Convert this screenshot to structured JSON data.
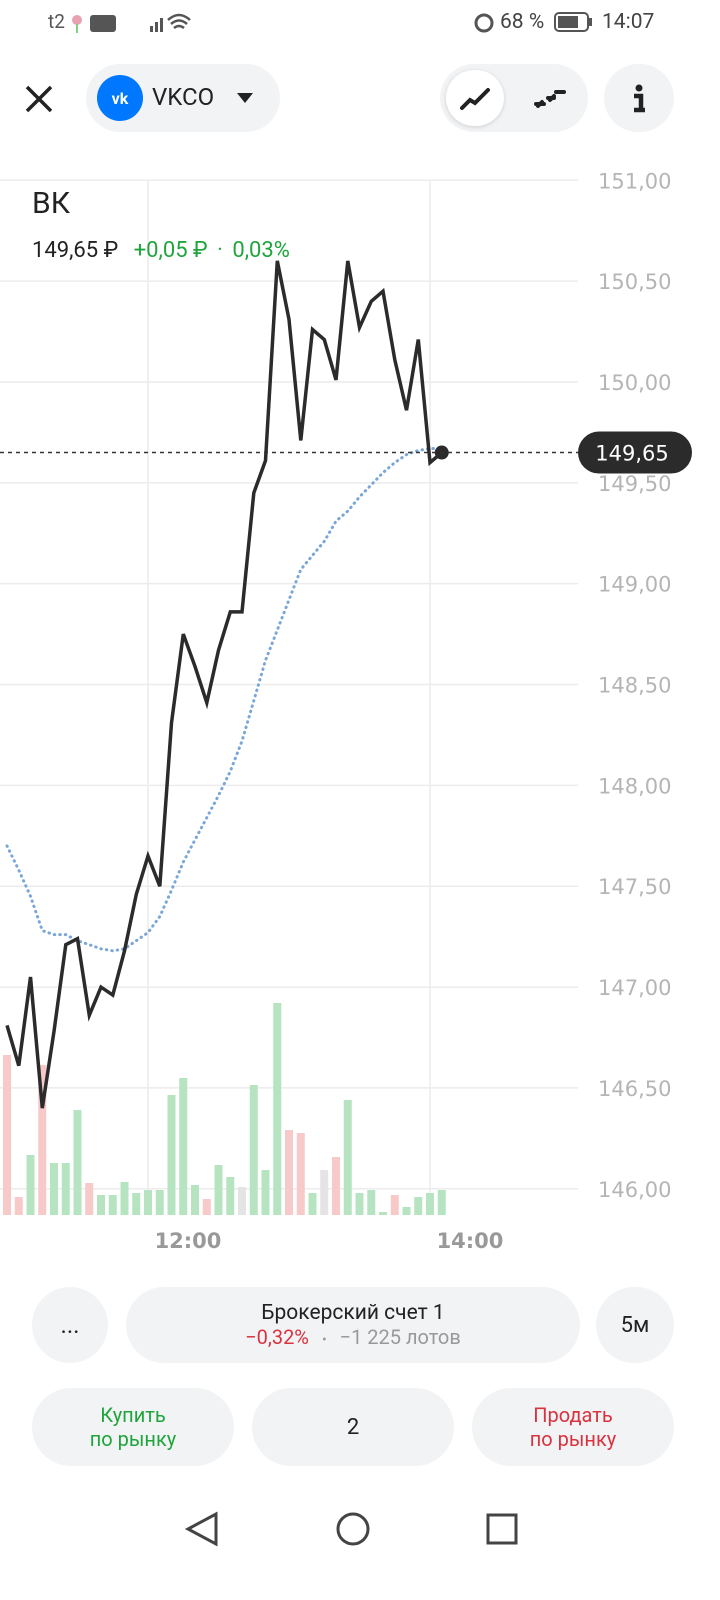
{
  "status_bar": {
    "carrier": "t2",
    "battery": "68 %",
    "time": "14:07"
  },
  "header": {
    "ticker": "VKCO"
  },
  "chart": {
    "type": "line",
    "title": "ВК",
    "price": "149,65 ₽",
    "change": "+0,05 ₽",
    "separator": "·",
    "change_percent": "0,03%",
    "categories": [
      null,
      null,
      null,
      null,
      null,
      null,
      null,
      null,
      null,
      null,
      null,
      null,
      "12:00",
      null,
      null,
      null,
      null,
      null,
      null,
      null,
      null,
      null,
      null,
      null,
      null,
      null,
      null,
      null,
      null,
      null,
      null,
      null,
      null,
      null,
      null,
      null,
      "14:00",
      null
    ],
    "price_series": {
      "color": "#2b2b2b",
      "values": [
        146.81,
        146.61,
        147.05,
        146.4,
        146.78,
        147.21,
        147.24,
        146.86,
        147.0,
        146.96,
        147.18,
        147.46,
        147.65,
        147.5,
        148.31,
        148.75,
        148.59,
        148.41,
        148.67,
        148.86,
        148.86,
        149.45,
        149.61,
        150.6,
        150.31,
        149.71,
        150.26,
        150.21,
        150.01,
        150.6,
        150.27,
        150.4,
        150.45,
        150.11,
        149.86,
        150.21,
        149.6,
        149.65
      ]
    },
    "moving_average": {
      "color": "#7aa6d8",
      "values": [
        147.7,
        147.58,
        147.45,
        147.28,
        147.26,
        147.26,
        147.23,
        147.21,
        147.19,
        147.18,
        147.19,
        147.23,
        147.27,
        147.35,
        147.48,
        147.62,
        147.73,
        147.84,
        147.95,
        148.07,
        148.22,
        148.42,
        148.62,
        148.77,
        148.92,
        149.07,
        149.14,
        149.21,
        149.31,
        149.36,
        149.43,
        149.49,
        149.55,
        149.6,
        149.64,
        149.66,
        149.67,
        149.67
      ]
    },
    "volume": {
      "values": [
        160,
        18,
        60,
        150,
        52,
        52,
        105,
        32,
        20,
        20,
        33,
        22,
        25,
        25,
        120,
        137,
        30,
        16,
        50,
        38,
        28,
        130,
        45,
        212,
        85,
        82,
        22,
        45,
        58,
        115,
        22,
        25,
        3,
        20,
        8,
        18,
        22,
        25
      ],
      "colors": [
        "#f7c9c9",
        "#f7c9c9",
        "#b6e4c0",
        "#f7c9c9",
        "#b6e4c0",
        "#b6e4c0",
        "#b6e4c0",
        "#f7c9c9",
        "#b6e4c0",
        "#b6e4c0",
        "#b6e4c0",
        "#b6e4c0",
        "#b6e4c0",
        "#b6e4c0",
        "#b6e4c0",
        "#b6e4c0",
        "#b6e4c0",
        "#f7c9c9",
        "#b6e4c0",
        "#b6e4c0",
        "#e4e4e4",
        "#b6e4c0",
        "#b6e4c0",
        "#b6e4c0",
        "#f7c9c9",
        "#f7c9c9",
        "#b6e4c0",
        "#e4e4e4",
        "#f7c9c9",
        "#b6e4c0",
        "#b6e4c0",
        "#b6e4c0",
        "#b6e4c0",
        "#f7c9c9",
        "#b6e4c0",
        "#b6e4c0",
        "#b6e4c0",
        "#b6e4c0"
      ]
    },
    "ylim": [
      145.87,
      151.15
    ],
    "yticks": [
      {
        "value": 146,
        "label": "146,00"
      },
      {
        "value": 146.5,
        "label": "146,50"
      },
      {
        "value": 147,
        "label": "147,00"
      },
      {
        "value": 147.5,
        "label": "147,50"
      },
      {
        "value": 148,
        "label": "148,00"
      },
      {
        "value": 148.5,
        "label": "148,50"
      },
      {
        "value": 149,
        "label": "149,00"
      },
      {
        "value": 149.5,
        "label": "149,50"
      },
      {
        "value": 150,
        "label": "150,00"
      },
      {
        "value": 150.5,
        "label": "150,50"
      },
      {
        "value": 151,
        "label": "151,00"
      }
    ],
    "grid": true,
    "current_price": {
      "value": 149.65,
      "label": "149,65"
    }
  },
  "footer": {
    "more": "...",
    "account": {
      "name": "Брокерский счет 1",
      "pnl": "−0,32%",
      "separator": "•",
      "lots": "−1 225 лотов"
    },
    "interval": "5м",
    "buy": [
      "Купить",
      "по рынку"
    ],
    "quantity": "2",
    "sell": [
      "Продать",
      "по рынку"
    ]
  }
}
